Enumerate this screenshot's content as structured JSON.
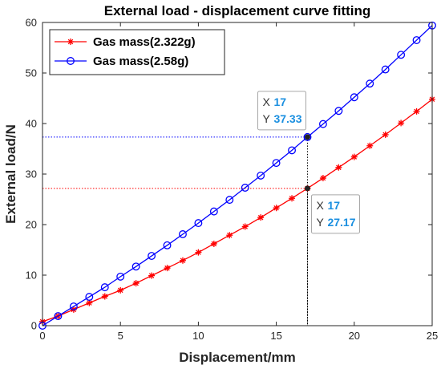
{
  "chart_data": {
    "type": "line",
    "title": "External load - displacement curve fitting",
    "xlabel": "Displacement/mm",
    "ylabel": "External load/N",
    "xlim": [
      0,
      25
    ],
    "ylim": [
      0,
      60
    ],
    "xticks": [
      0,
      5,
      10,
      15,
      20,
      25
    ],
    "yticks": [
      0,
      10,
      20,
      30,
      40,
      50,
      60
    ],
    "grid": false,
    "legend_position": "top-left",
    "x": [
      0,
      1,
      2,
      3,
      4,
      5,
      6,
      7,
      8,
      9,
      10,
      11,
      12,
      13,
      14,
      15,
      16,
      17,
      18,
      19,
      20,
      21,
      22,
      23,
      24,
      25
    ],
    "series": [
      {
        "name": "Gas mass(2.322g)",
        "color": "#ff0000",
        "marker": "asterisk",
        "values": [
          0.8,
          1.9,
          3.2,
          4.5,
          5.8,
          7.0,
          8.4,
          9.9,
          11.4,
          12.9,
          14.5,
          16.2,
          17.9,
          19.6,
          21.4,
          23.3,
          25.2,
          27.17,
          29.2,
          31.3,
          33.4,
          35.6,
          37.8,
          40.1,
          42.4,
          44.8
        ]
      },
      {
        "name": "Gas mass(2.58g)",
        "color": "#0000ff",
        "marker": "circle",
        "values": [
          0,
          1.9,
          3.8,
          5.7,
          7.6,
          9.7,
          11.7,
          13.8,
          15.9,
          18.1,
          20.3,
          22.6,
          24.9,
          27.3,
          29.7,
          32.2,
          34.7,
          37.33,
          39.9,
          42.5,
          45.2,
          47.9,
          50.7,
          53.6,
          56.5,
          59.4
        ]
      }
    ],
    "datatips": [
      {
        "x_label": "X",
        "x_value": "17",
        "y_label": "Y",
        "y_value": "37.33",
        "x": 17,
        "y": 37.33,
        "line_color": "#0000ff"
      },
      {
        "x_label": "X",
        "x_value": "17",
        "y_label": "Y",
        "y_value": "27.17",
        "x": 17,
        "y": 27.17,
        "line_color": "#ff0000"
      }
    ]
  }
}
